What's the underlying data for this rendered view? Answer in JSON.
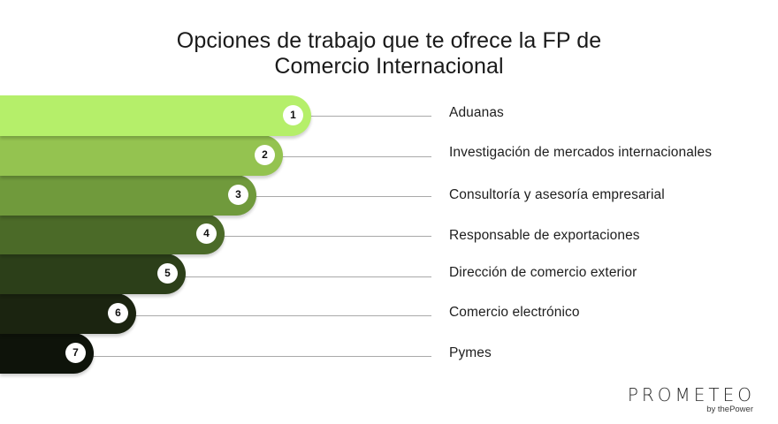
{
  "title": {
    "line1": "Opciones de trabajo que te ofrece la FP de",
    "line2": "Comercio Internacional"
  },
  "items": [
    {
      "number": "1",
      "label": "Aduanas",
      "color": "#b5ef6a"
    },
    {
      "number": "2",
      "label": "Investigación de mercados internacionales",
      "color": "#94c350"
    },
    {
      "number": "3",
      "label": "Consultoría y asesoría empresarial",
      "color": "#709a3c"
    },
    {
      "number": "4",
      "label": "Responsable de exportaciones",
      "color": "#4b6a28"
    },
    {
      "number": "5",
      "label": "Dirección de comercio exterior",
      "color": "#2c3f19"
    },
    {
      "number": "6",
      "label": "Comercio electrónico",
      "color": "#1b2410"
    },
    {
      "number": "7",
      "label": "Pymes",
      "color": "#0e130a"
    }
  ],
  "logo": {
    "main": "PROMETEO",
    "sub": "by thePower"
  }
}
